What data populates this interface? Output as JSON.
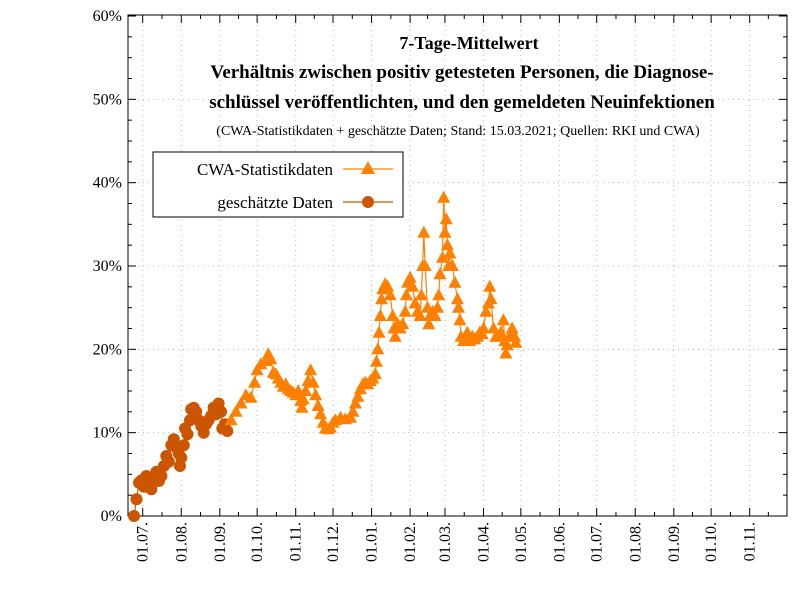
{
  "chart_data": {
    "type": "line",
    "title_lines": [
      "7-Tage-Mittelwert",
      "Verhältnis zwischen positiv getesteten Personen, die Diagnose-",
      "schlüssel veröffentlichten, und den gemeldeten Neuinfektionen"
    ],
    "subtitle": "(CWA-Statistikdaten + geschätzte Daten; Stand: 15.03.2021; Quellen: RKI und CWA)",
    "xlabel": "",
    "ylabel": "",
    "ylim": [
      0,
      60
    ],
    "yticks": [
      0,
      10,
      20,
      30,
      40,
      50,
      60
    ],
    "ytick_labels": [
      "0%",
      "10%",
      "20%",
      "30%",
      "40%",
      "50%",
      "60%"
    ],
    "x_unit": "days since 24.06.",
    "xlim": [
      0,
      525
    ],
    "xticks": [
      {
        "day": 7,
        "label": "01.07."
      },
      {
        "day": 38,
        "label": "01.08."
      },
      {
        "day": 69,
        "label": "01.09."
      },
      {
        "day": 99,
        "label": "01.10."
      },
      {
        "day": 130,
        "label": "01.11."
      },
      {
        "day": 160,
        "label": "01.12."
      },
      {
        "day": 191,
        "label": "01.01."
      },
      {
        "day": 222,
        "label": "01.02."
      },
      {
        "day": 250,
        "label": "01.03."
      },
      {
        "day": 281,
        "label": "01.04."
      },
      {
        "day": 311,
        "label": "01.05."
      },
      {
        "day": 342,
        "label": "01.06."
      },
      {
        "day": 372,
        "label": "01.07."
      },
      {
        "day": 403,
        "label": "01.08."
      },
      {
        "day": 434,
        "label": "01.09."
      },
      {
        "day": 464,
        "label": "01.10."
      },
      {
        "day": 495,
        "label": "01.11."
      }
    ],
    "legend": {
      "position": "top-left",
      "entries": [
        {
          "name": "CWA-Statistikdaten",
          "marker": "triangle"
        },
        {
          "name": "geschätzte Daten",
          "marker": "circle"
        }
      ]
    },
    "series": [
      {
        "name": "geschätzte Daten",
        "marker": "circle",
        "color": "#cc5500",
        "points": [
          [
            0,
            0
          ],
          [
            2,
            2
          ],
          [
            4,
            4
          ],
          [
            6,
            4.3
          ],
          [
            8,
            3.5
          ],
          [
            10,
            4.8
          ],
          [
            12,
            4.2
          ],
          [
            14,
            3.2
          ],
          [
            16,
            4.5
          ],
          [
            18,
            5.3
          ],
          [
            20,
            4.2
          ],
          [
            22,
            4.8
          ],
          [
            24,
            6
          ],
          [
            26,
            7.2
          ],
          [
            28,
            6.5
          ],
          [
            30,
            8.5
          ],
          [
            32,
            9.2
          ],
          [
            34,
            8.2
          ],
          [
            36,
            7.5
          ],
          [
            37,
            6
          ],
          [
            38,
            7
          ],
          [
            40,
            8.5
          ],
          [
            41,
            10.5
          ],
          [
            43,
            9.8
          ],
          [
            45,
            11.5
          ],
          [
            46,
            12.8
          ],
          [
            48,
            13
          ],
          [
            50,
            12.5
          ],
          [
            52,
            11.5
          ],
          [
            54,
            10.8
          ],
          [
            56,
            10
          ],
          [
            58,
            11
          ],
          [
            60,
            11.5
          ],
          [
            62,
            12
          ],
          [
            64,
            13
          ],
          [
            66,
            12.2
          ],
          [
            68,
            13.5
          ],
          [
            70,
            12.5
          ],
          [
            71,
            10.5
          ],
          [
            73,
            11
          ],
          [
            75,
            10.2
          ]
        ]
      },
      {
        "name": "CWA-Statistikdaten",
        "marker": "triangle",
        "color": "#ff8000",
        "points": [
          [
            78,
            11.5
          ],
          [
            82,
            12.5
          ],
          [
            86,
            13.5
          ],
          [
            90,
            14.5
          ],
          [
            94,
            14.2
          ],
          [
            97,
            16
          ],
          [
            99,
            17.5
          ],
          [
            102,
            18.2
          ],
          [
            106,
            18.6
          ],
          [
            108,
            19.4
          ],
          [
            110,
            18.8
          ],
          [
            112,
            17.2
          ],
          [
            114,
            17
          ],
          [
            116,
            16.5
          ],
          [
            118,
            16
          ],
          [
            120,
            15.5
          ],
          [
            122,
            15.8
          ],
          [
            124,
            15.2
          ],
          [
            126,
            15
          ],
          [
            128,
            14.8
          ],
          [
            130,
            14.5
          ],
          [
            132,
            15
          ],
          [
            134,
            13.8
          ],
          [
            135,
            13
          ],
          [
            136,
            14
          ],
          [
            138,
            15
          ],
          [
            140,
            16.2
          ],
          [
            142,
            17.5
          ],
          [
            144,
            16
          ],
          [
            146,
            14.5
          ],
          [
            148,
            13.2
          ],
          [
            150,
            12.2
          ],
          [
            152,
            11.2
          ],
          [
            154,
            10.5
          ],
          [
            156,
            10.4
          ],
          [
            158,
            10.6
          ],
          [
            160,
            11.2
          ],
          [
            162,
            11.5
          ],
          [
            166,
            11.8
          ],
          [
            170,
            11.6
          ],
          [
            174,
            11.8
          ],
          [
            176,
            12.5
          ],
          [
            178,
            13.5
          ],
          [
            180,
            14.3
          ],
          [
            182,
            15.2
          ],
          [
            184,
            15.8
          ],
          [
            186,
            16
          ],
          [
            188,
            15.8
          ],
          [
            190,
            16.2
          ],
          [
            192,
            16.5
          ],
          [
            194,
            17
          ],
          [
            195,
            18.5
          ],
          [
            196,
            20
          ],
          [
            197,
            22
          ],
          [
            198,
            24
          ],
          [
            199,
            26
          ],
          [
            200,
            27.2
          ],
          [
            202,
            27.8
          ],
          [
            204,
            27.5
          ],
          [
            206,
            26.5
          ],
          [
            208,
            24
          ],
          [
            209,
            22.5
          ],
          [
            210,
            21.5
          ],
          [
            212,
            23
          ],
          [
            214,
            22.5
          ],
          [
            216,
            23
          ],
          [
            218,
            24.5
          ],
          [
            219,
            26.5
          ],
          [
            220,
            28
          ],
          [
            222,
            28.6
          ],
          [
            224,
            27.5
          ],
          [
            226,
            25.5
          ],
          [
            228,
            24.5
          ],
          [
            230,
            24
          ],
          [
            231,
            26.5
          ],
          [
            232,
            30
          ],
          [
            233,
            34
          ],
          [
            234,
            30
          ],
          [
            236,
            25
          ],
          [
            237,
            23
          ],
          [
            238,
            24
          ],
          [
            240,
            24.5
          ],
          [
            242,
            24
          ],
          [
            244,
            25
          ],
          [
            245,
            26.5
          ],
          [
            246,
            29
          ],
          [
            248,
            31
          ],
          [
            249,
            38.2
          ],
          [
            250,
            34
          ],
          [
            251,
            35.6
          ],
          [
            252,
            32.5
          ],
          [
            253,
            30
          ],
          [
            254,
            31.5
          ],
          [
            256,
            30
          ],
          [
            258,
            28
          ],
          [
            260,
            26
          ],
          [
            261,
            25
          ],
          [
            262,
            23.5
          ],
          [
            263,
            21.5
          ],
          [
            265,
            21
          ],
          [
            267,
            21.5
          ],
          [
            268,
            22
          ],
          [
            270,
            21
          ],
          [
            272,
            21.5
          ],
          [
            274,
            21.2
          ],
          [
            276,
            21.5
          ],
          [
            278,
            22
          ],
          [
            280,
            21.8
          ],
          [
            281,
            22.5
          ],
          [
            283,
            24.5
          ],
          [
            285,
            25.5
          ],
          [
            286,
            27.5
          ],
          [
            287,
            26
          ],
          [
            289,
            22.5
          ],
          [
            291,
            21.5
          ],
          [
            293,
            21.5
          ],
          [
            295,
            22
          ],
          [
            297,
            23.5
          ],
          [
            298,
            21
          ],
          [
            299,
            19.5
          ],
          [
            300,
            20.5
          ],
          [
            302,
            21.5
          ],
          [
            304,
            22.5
          ],
          [
            306,
            21.5
          ],
          [
            307,
            20.8
          ]
        ]
      }
    ]
  }
}
